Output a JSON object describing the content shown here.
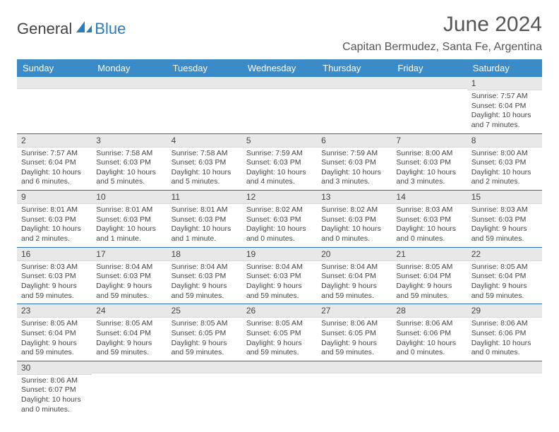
{
  "logo": {
    "part1": "General",
    "part2": "Blue"
  },
  "title": "June 2024",
  "location": "Capitan Bermudez, Santa Fe, Argentina",
  "colors": {
    "header_bg": "#3b8bc9",
    "header_text": "#ffffff",
    "daynum_bg": "#e8e8e8",
    "row_border": "#2b6ca8",
    "text": "#444444",
    "logo_blue": "#2b7bbd"
  },
  "weekdays": [
    "Sunday",
    "Monday",
    "Tuesday",
    "Wednesday",
    "Thursday",
    "Friday",
    "Saturday"
  ],
  "weeks": [
    [
      null,
      null,
      null,
      null,
      null,
      null,
      {
        "n": "1",
        "sr": "Sunrise: 7:57 AM",
        "ss": "Sunset: 6:04 PM",
        "dl": "Daylight: 10 hours and 7 minutes."
      }
    ],
    [
      {
        "n": "2",
        "sr": "Sunrise: 7:57 AM",
        "ss": "Sunset: 6:04 PM",
        "dl": "Daylight: 10 hours and 6 minutes."
      },
      {
        "n": "3",
        "sr": "Sunrise: 7:58 AM",
        "ss": "Sunset: 6:03 PM",
        "dl": "Daylight: 10 hours and 5 minutes."
      },
      {
        "n": "4",
        "sr": "Sunrise: 7:58 AM",
        "ss": "Sunset: 6:03 PM",
        "dl": "Daylight: 10 hours and 5 minutes."
      },
      {
        "n": "5",
        "sr": "Sunrise: 7:59 AM",
        "ss": "Sunset: 6:03 PM",
        "dl": "Daylight: 10 hours and 4 minutes."
      },
      {
        "n": "6",
        "sr": "Sunrise: 7:59 AM",
        "ss": "Sunset: 6:03 PM",
        "dl": "Daylight: 10 hours and 3 minutes."
      },
      {
        "n": "7",
        "sr": "Sunrise: 8:00 AM",
        "ss": "Sunset: 6:03 PM",
        "dl": "Daylight: 10 hours and 3 minutes."
      },
      {
        "n": "8",
        "sr": "Sunrise: 8:00 AM",
        "ss": "Sunset: 6:03 PM",
        "dl": "Daylight: 10 hours and 2 minutes."
      }
    ],
    [
      {
        "n": "9",
        "sr": "Sunrise: 8:01 AM",
        "ss": "Sunset: 6:03 PM",
        "dl": "Daylight: 10 hours and 2 minutes."
      },
      {
        "n": "10",
        "sr": "Sunrise: 8:01 AM",
        "ss": "Sunset: 6:03 PM",
        "dl": "Daylight: 10 hours and 1 minute."
      },
      {
        "n": "11",
        "sr": "Sunrise: 8:01 AM",
        "ss": "Sunset: 6:03 PM",
        "dl": "Daylight: 10 hours and 1 minute."
      },
      {
        "n": "12",
        "sr": "Sunrise: 8:02 AM",
        "ss": "Sunset: 6:03 PM",
        "dl": "Daylight: 10 hours and 0 minutes."
      },
      {
        "n": "13",
        "sr": "Sunrise: 8:02 AM",
        "ss": "Sunset: 6:03 PM",
        "dl": "Daylight: 10 hours and 0 minutes."
      },
      {
        "n": "14",
        "sr": "Sunrise: 8:03 AM",
        "ss": "Sunset: 6:03 PM",
        "dl": "Daylight: 10 hours and 0 minutes."
      },
      {
        "n": "15",
        "sr": "Sunrise: 8:03 AM",
        "ss": "Sunset: 6:03 PM",
        "dl": "Daylight: 9 hours and 59 minutes."
      }
    ],
    [
      {
        "n": "16",
        "sr": "Sunrise: 8:03 AM",
        "ss": "Sunset: 6:03 PM",
        "dl": "Daylight: 9 hours and 59 minutes."
      },
      {
        "n": "17",
        "sr": "Sunrise: 8:04 AM",
        "ss": "Sunset: 6:03 PM",
        "dl": "Daylight: 9 hours and 59 minutes."
      },
      {
        "n": "18",
        "sr": "Sunrise: 8:04 AM",
        "ss": "Sunset: 6:03 PM",
        "dl": "Daylight: 9 hours and 59 minutes."
      },
      {
        "n": "19",
        "sr": "Sunrise: 8:04 AM",
        "ss": "Sunset: 6:03 PM",
        "dl": "Daylight: 9 hours and 59 minutes."
      },
      {
        "n": "20",
        "sr": "Sunrise: 8:04 AM",
        "ss": "Sunset: 6:04 PM",
        "dl": "Daylight: 9 hours and 59 minutes."
      },
      {
        "n": "21",
        "sr": "Sunrise: 8:05 AM",
        "ss": "Sunset: 6:04 PM",
        "dl": "Daylight: 9 hours and 59 minutes."
      },
      {
        "n": "22",
        "sr": "Sunrise: 8:05 AM",
        "ss": "Sunset: 6:04 PM",
        "dl": "Daylight: 9 hours and 59 minutes."
      }
    ],
    [
      {
        "n": "23",
        "sr": "Sunrise: 8:05 AM",
        "ss": "Sunset: 6:04 PM",
        "dl": "Daylight: 9 hours and 59 minutes."
      },
      {
        "n": "24",
        "sr": "Sunrise: 8:05 AM",
        "ss": "Sunset: 6:04 PM",
        "dl": "Daylight: 9 hours and 59 minutes."
      },
      {
        "n": "25",
        "sr": "Sunrise: 8:05 AM",
        "ss": "Sunset: 6:05 PM",
        "dl": "Daylight: 9 hours and 59 minutes."
      },
      {
        "n": "26",
        "sr": "Sunrise: 8:05 AM",
        "ss": "Sunset: 6:05 PM",
        "dl": "Daylight: 9 hours and 59 minutes."
      },
      {
        "n": "27",
        "sr": "Sunrise: 8:06 AM",
        "ss": "Sunset: 6:05 PM",
        "dl": "Daylight: 9 hours and 59 minutes."
      },
      {
        "n": "28",
        "sr": "Sunrise: 8:06 AM",
        "ss": "Sunset: 6:06 PM",
        "dl": "Daylight: 10 hours and 0 minutes."
      },
      {
        "n": "29",
        "sr": "Sunrise: 8:06 AM",
        "ss": "Sunset: 6:06 PM",
        "dl": "Daylight: 10 hours and 0 minutes."
      }
    ],
    [
      {
        "n": "30",
        "sr": "Sunrise: 8:06 AM",
        "ss": "Sunset: 6:07 PM",
        "dl": "Daylight: 10 hours and 0 minutes."
      },
      null,
      null,
      null,
      null,
      null,
      null
    ]
  ]
}
